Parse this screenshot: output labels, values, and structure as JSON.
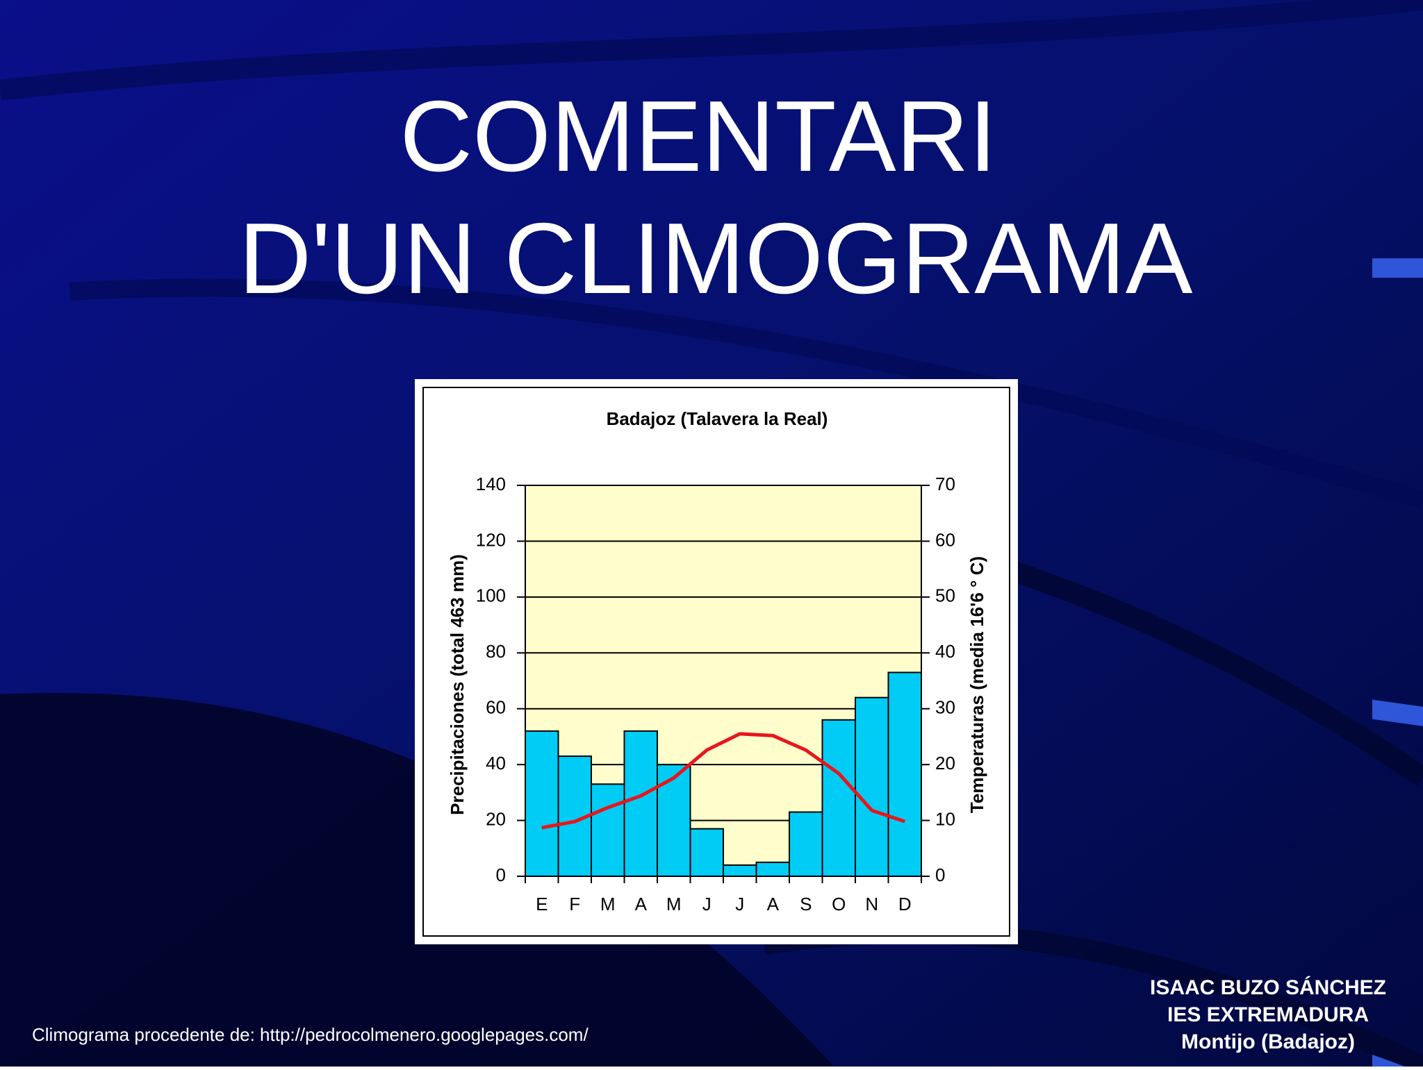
{
  "title_lines": [
    "COMENTARI",
    "D'UN CLIMOGRAMA"
  ],
  "source": "Climograma procedente de: http://pedrocolmenero.googlepages.com/",
  "author_lines": [
    "ISAAC BUZO SÁNCHEZ",
    "IES EXTREMADURA",
    "Montijo (Badajoz)"
  ],
  "chart_data": {
    "type": "bar",
    "title": "Badajoz (Talavera la Real)",
    "ylabel": "Precipitaciones (total 463 mm)",
    "y2label": "Temperaturas (media 16'6 ° C)",
    "categories": [
      "E",
      "F",
      "M",
      "A",
      "M",
      "J",
      "J",
      "A",
      "S",
      "O",
      "N",
      "D"
    ],
    "series": [
      {
        "type": "bar",
        "color": "#00ccf5",
        "values": [
          52,
          43,
          33,
          52,
          40,
          17,
          4,
          5,
          23,
          56,
          64,
          73
        ]
      },
      {
        "type": "line",
        "axis": "y2",
        "color": "#e8161c",
        "values": [
          8.7,
          9.8,
          12.3,
          14.4,
          17.6,
          22.6,
          25.5,
          25.2,
          22.6,
          18.4,
          11.8,
          9.8
        ]
      }
    ],
    "ylim": [
      0,
      140
    ],
    "yticks": [
      0,
      20,
      40,
      60,
      80,
      100,
      120,
      140
    ],
    "y2lim": [
      0,
      70
    ],
    "y2ticks": [
      0,
      10,
      20,
      30,
      40,
      50,
      60,
      70
    ],
    "grid": true,
    "plot_background": "#fffdcc"
  }
}
